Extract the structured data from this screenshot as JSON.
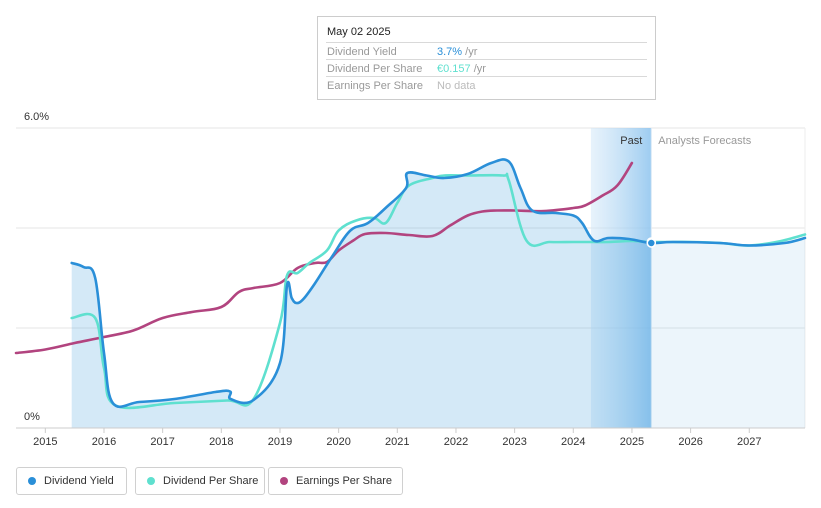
{
  "tooltip": {
    "date": "May 02 2025",
    "rows": [
      {
        "label": "Dividend Yield",
        "value": "3.7%",
        "unit": "/yr",
        "color": "#2a8fd8"
      },
      {
        "label": "Dividend Per Share",
        "value": "€0.157",
        "unit": "/yr",
        "color": "#5fe0cf"
      },
      {
        "label": "Earnings Per Share",
        "value": "No data",
        "unit": "",
        "color": "#bbbbbb"
      }
    ]
  },
  "legend": [
    {
      "label": "Dividend Yield",
      "color": "#2a8fd8"
    },
    {
      "label": "Dividend Per Share",
      "color": "#5fe0cf"
    },
    {
      "label": "Earnings Per Share",
      "color": "#b2447f"
    }
  ],
  "chart_data": {
    "type": "line",
    "y_axis_labels": [
      "6.0%",
      "0%"
    ],
    "ylim": [
      0,
      6.0
    ],
    "xlim": [
      2014.5,
      2027.95
    ],
    "x_ticks": [
      "2015",
      "2016",
      "2017",
      "2018",
      "2019",
      "2020",
      "2021",
      "2022",
      "2023",
      "2024",
      "2025",
      "2026",
      "2027"
    ],
    "regions": {
      "past_label": "Past",
      "forecast_label": "Analysts Forecasts",
      "highlight_start": 2024.3,
      "now": 2025.33
    },
    "series": [
      {
        "name": "Dividend Yield",
        "color": "#2a8fd8",
        "x": [
          2015.45,
          2015.65,
          2015.85,
          2016.0,
          2016.15,
          2016.6,
          2017.2,
          2017.9,
          2018.15,
          2018.16,
          2018.55,
          2019.0,
          2019.12,
          2019.2,
          2019.28,
          2019.4,
          2019.6,
          2019.9,
          2020.2,
          2020.5,
          2020.8,
          2021.15,
          2021.17,
          2021.5,
          2021.8,
          2022.2,
          2022.6,
          2022.9,
          2023.1,
          2023.3,
          2023.7,
          2024.0,
          2024.15,
          2024.35,
          2024.6,
          2024.95,
          2025.33,
          2025.7,
          2026.5,
          2027.0,
          2027.6,
          2027.95
        ],
        "y": [
          3.3,
          3.22,
          3.0,
          1.5,
          0.5,
          0.52,
          0.58,
          0.72,
          0.73,
          0.58,
          0.56,
          1.3,
          2.85,
          2.6,
          2.5,
          2.58,
          2.9,
          3.45,
          3.95,
          4.1,
          4.4,
          4.8,
          5.1,
          5.05,
          5.0,
          5.08,
          5.3,
          5.33,
          4.8,
          4.35,
          4.3,
          4.25,
          4.1,
          3.75,
          3.8,
          3.78,
          3.7,
          3.72,
          3.7,
          3.65,
          3.7,
          3.8
        ]
      },
      {
        "name": "Dividend Per Share",
        "color": "#5fe0cf",
        "x": [
          2015.45,
          2015.85,
          2016.0,
          2016.2,
          2017.2,
          2018.1,
          2018.55,
          2019.0,
          2019.12,
          2019.3,
          2019.5,
          2019.8,
          2020.0,
          2020.3,
          2020.6,
          2020.8,
          2021.0,
          2021.2,
          2021.6,
          2021.8,
          2022.2,
          2022.8,
          2022.9,
          2023.2,
          2023.6,
          2024.0,
          2024.35,
          2024.6,
          2025.0,
          2025.33,
          2026.0,
          2026.5,
          2027.0,
          2027.5,
          2027.95
        ],
        "y": [
          2.2,
          2.2,
          1.2,
          0.45,
          0.5,
          0.55,
          0.58,
          2.1,
          3.05,
          3.1,
          3.3,
          3.55,
          3.95,
          4.15,
          4.2,
          4.1,
          4.5,
          4.85,
          5.0,
          5.05,
          5.05,
          5.05,
          4.95,
          3.75,
          3.72,
          3.72,
          3.72,
          3.72,
          3.74,
          3.72,
          3.72,
          3.7,
          3.65,
          3.73,
          3.87
        ]
      },
      {
        "name": "Earnings Per Share",
        "color": "#b2447f",
        "x": [
          2014.5,
          2015.0,
          2015.5,
          2016.0,
          2016.5,
          2017.0,
          2017.5,
          2018.0,
          2018.3,
          2018.55,
          2019.0,
          2019.3,
          2019.6,
          2019.8,
          2020.0,
          2020.25,
          2020.45,
          2020.8,
          2021.2,
          2021.6,
          2021.9,
          2022.2,
          2022.45,
          2022.7,
          2023.0,
          2023.5,
          2024.0,
          2024.2,
          2024.5,
          2024.75,
          2025.0
        ],
        "y": [
          1.5,
          1.57,
          1.7,
          1.82,
          1.95,
          2.2,
          2.32,
          2.42,
          2.72,
          2.8,
          2.9,
          3.2,
          3.3,
          3.32,
          3.55,
          3.75,
          3.88,
          3.9,
          3.86,
          3.84,
          4.05,
          4.25,
          4.33,
          4.35,
          4.35,
          4.34,
          4.4,
          4.45,
          4.65,
          4.85,
          5.3
        ]
      }
    ]
  }
}
